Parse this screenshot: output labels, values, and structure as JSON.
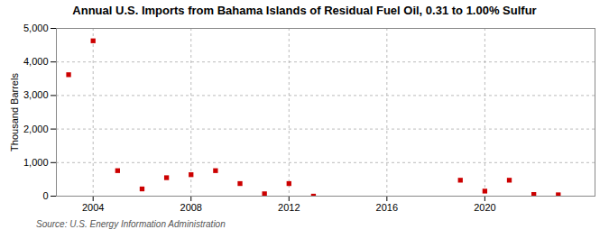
{
  "chart_data": {
    "type": "scatter",
    "title": "Annual U.S. Imports from Bahama Islands of Residual Fuel Oil, 0.31 to 1.00% Sulfur",
    "ylabel": "Thousand Barrels",
    "source": "Source: U.S. Energy Information Administration",
    "x": [
      2003,
      2004,
      2005,
      2006,
      2007,
      2008,
      2009,
      2010,
      2011,
      2012,
      2013,
      2019,
      2020,
      2021,
      2022,
      2023
    ],
    "values": [
      3620,
      4630,
      760,
      215,
      550,
      640,
      760,
      375,
      70,
      375,
      0,
      475,
      150,
      475,
      50,
      40
    ],
    "color": "#cc0000",
    "marker": "square",
    "xlim": [
      2002.5,
      2024.5
    ],
    "xticks": [
      2004,
      2008,
      2012,
      2016,
      2020
    ],
    "ylim": [
      0,
      5000
    ],
    "yticks": [
      0,
      {
        "value": 1000,
        "label": "1,000"
      },
      {
        "value": 2000,
        "label": "2,000"
      },
      {
        "value": 3000,
        "label": "3,000"
      },
      {
        "value": 4000,
        "label": "4,000"
      },
      {
        "value": 5000,
        "label": "5,000"
      }
    ],
    "grid": true
  }
}
